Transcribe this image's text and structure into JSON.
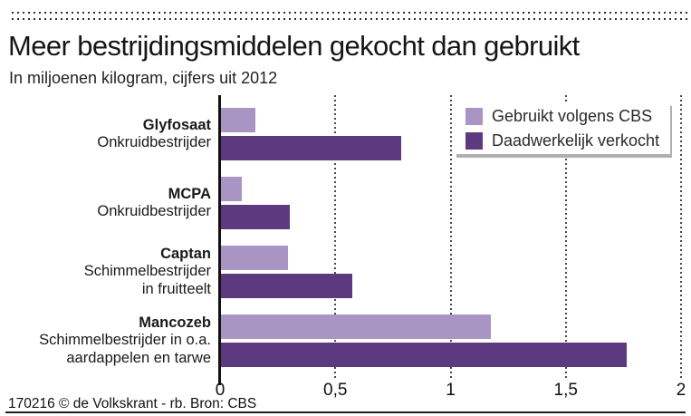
{
  "header": {
    "title": "Meer bestrijdingsmiddelen gekocht dan gebruikt",
    "subtitle": "In miljoenen kilogram, cijfers uit 2012"
  },
  "legend": {
    "items": [
      {
        "label": "Gebruikt volgens CBS",
        "color": "#a895c3"
      },
      {
        "label": "Daadwerkelijk verkocht",
        "color": "#5d3a7f"
      }
    ]
  },
  "chart_data": {
    "type": "bar",
    "orientation": "horizontal",
    "title": "Meer bestrijdingsmiddelen gekocht dan gebruikt",
    "subtitle": "In miljoenen kilogram, cijfers uit 2012",
    "unit": "miljoenen kilogram",
    "categories": [
      {
        "name": "Glyfosaat",
        "description": [
          "Onkruidbestrijder"
        ]
      },
      {
        "name": "MCPA",
        "description": [
          "Onkruidbestrijder"
        ]
      },
      {
        "name": "Captan",
        "description": [
          "Schimmelbestrijder",
          "in fruitteelt"
        ]
      },
      {
        "name": "Mancozeb",
        "description": [
          "Schimmelbestrijder in o.a.",
          "aardappelen en tarwe"
        ]
      }
    ],
    "series": [
      {
        "name": "Gebruikt volgens CBS",
        "color": "#a895c3",
        "values": [
          0.15,
          0.09,
          0.29,
          1.17
        ]
      },
      {
        "name": "Daadwerkelijk verkocht",
        "color": "#5d3a7f",
        "values": [
          0.78,
          0.3,
          0.57,
          1.76
        ]
      }
    ],
    "x_ticks": [
      "0",
      "0,5",
      "1",
      "1,5",
      "2"
    ],
    "x_tick_values": [
      0,
      0.5,
      1,
      1.5,
      2
    ],
    "xlim": [
      0,
      2
    ],
    "gridlines": "dotted-vertical",
    "legend_position": "top-right"
  },
  "footer": {
    "credit": "170216 © de Volkskrant - rb. Bron: CBS"
  }
}
